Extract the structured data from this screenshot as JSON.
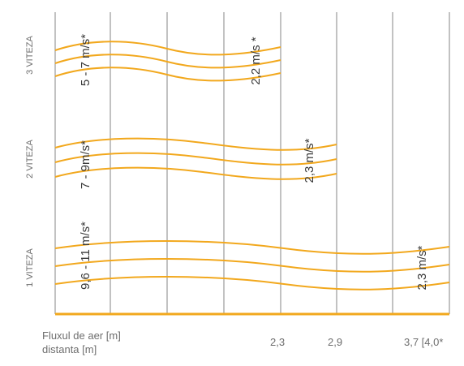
{
  "colors": {
    "grid": "#9a9a9a",
    "flow": "#f2a81d",
    "baseline": "#f2a81d"
  },
  "rows": [
    {
      "label": "3 VITEZA",
      "start_speed": "5 - 7 m/s*",
      "end_speed": "2,2 m/s *"
    },
    {
      "label": "2 VITEZA",
      "start_speed": "7 - 9m/s*",
      "end_speed": "2,3 m/s*"
    },
    {
      "label": "1 VITEZA",
      "start_speed": "9,6 - 11 m/s*",
      "end_speed": "2,3 m/s*"
    }
  ],
  "axis": {
    "caption_line1": "Fluxul de aer [m]",
    "caption_line2": "distanta [m]",
    "ticks": [
      "2,3",
      "2,9",
      "3,7 [4,0*"
    ]
  }
}
